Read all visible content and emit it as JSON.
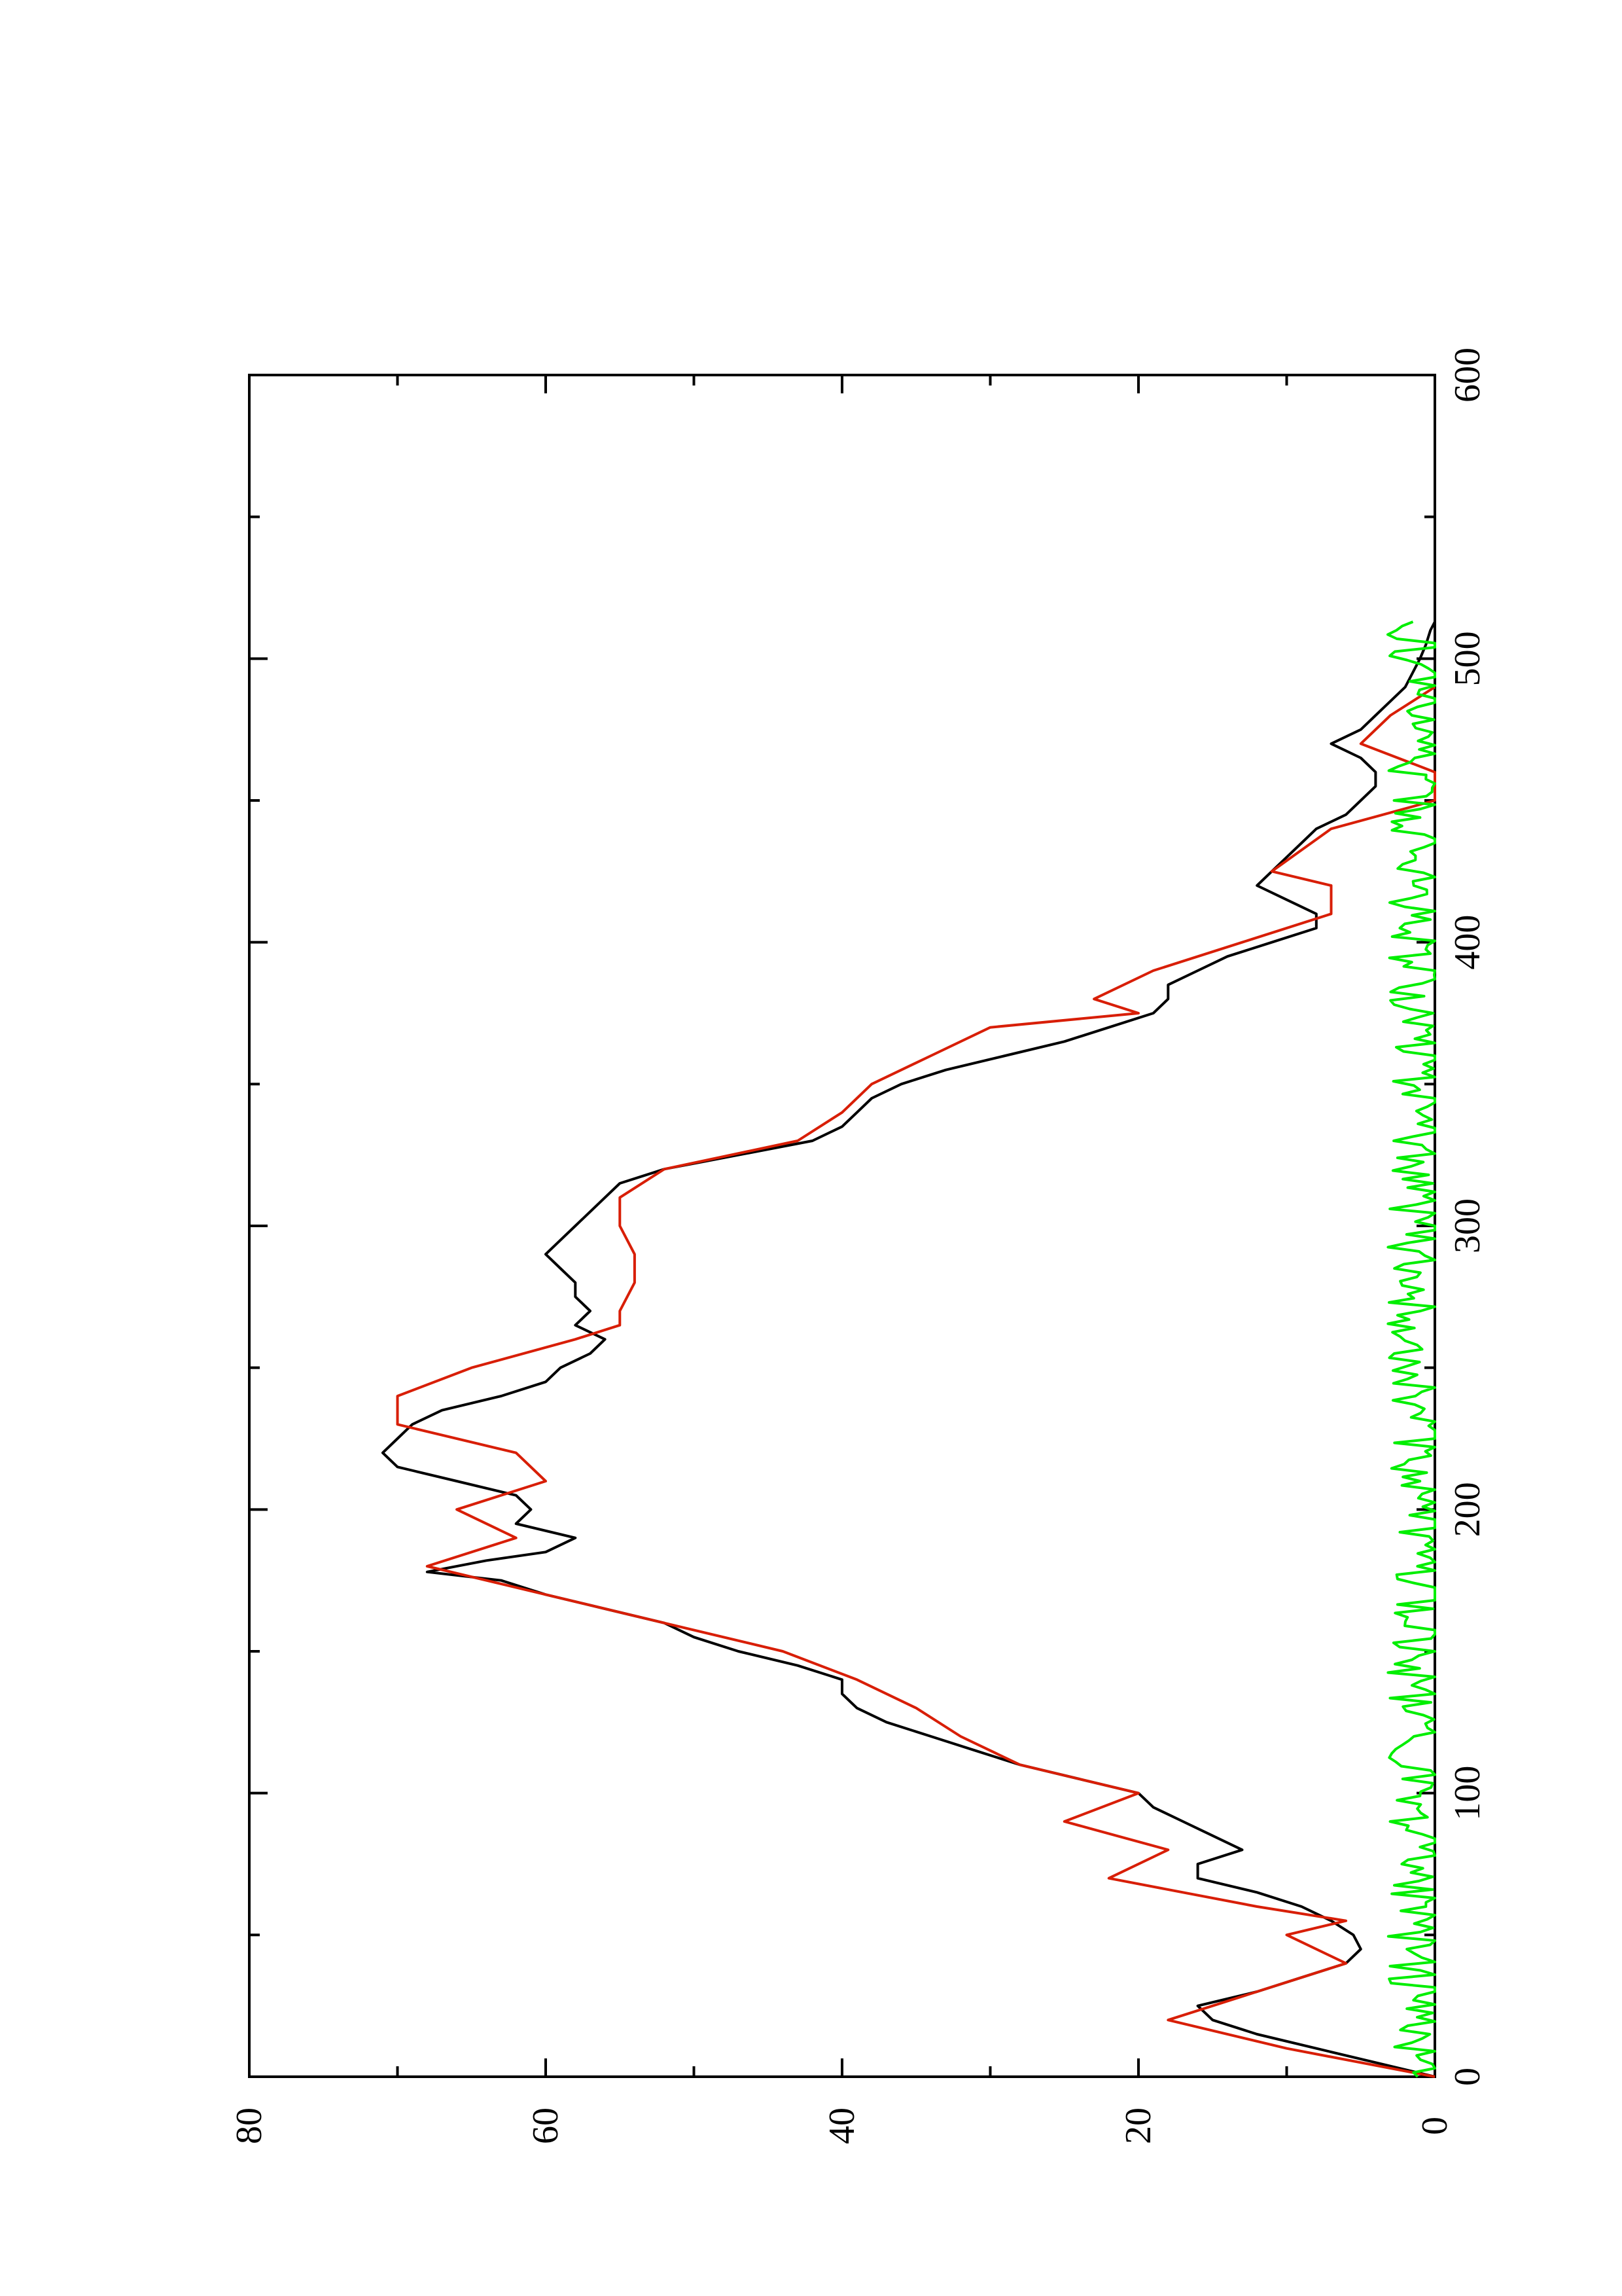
{
  "chart_data": {
    "type": "line",
    "orientation": "rotated-90-ccw",
    "xlim": [
      0,
      600
    ],
    "ylim": [
      0,
      80
    ],
    "x_ticks": [
      0,
      100,
      200,
      300,
      400,
      500,
      600
    ],
    "y_ticks": [
      0,
      20,
      40,
      60,
      80
    ],
    "x_tick_labels": [
      "0",
      "100",
      "200",
      "300",
      "400",
      "500",
      "600"
    ],
    "y_tick_labels": [
      "0",
      "20",
      "40",
      "60",
      "80"
    ],
    "x_minor_ticks": [
      50,
      150,
      250,
      350,
      450,
      550
    ],
    "y_minor_ticks": [
      10,
      30,
      50,
      70
    ],
    "grid": false,
    "series": [
      {
        "color": "#000000",
        "x": [
          0,
          5,
          10,
          15,
          20,
          25,
          30,
          35,
          40,
          45,
          50,
          55,
          60,
          65,
          70,
          75,
          80,
          85,
          90,
          95,
          100,
          105,
          110,
          115,
          120,
          125,
          130,
          135,
          140,
          145,
          150,
          155,
          160,
          165,
          170,
          175,
          178,
          182,
          185,
          190,
          195,
          200,
          205,
          210,
          215,
          220,
          225,
          230,
          235,
          240,
          245,
          250,
          255,
          260,
          265,
          270,
          275,
          280,
          285,
          290,
          295,
          300,
          305,
          310,
          315,
          320,
          325,
          330,
          335,
          340,
          345,
          350,
          355,
          360,
          365,
          370,
          375,
          380,
          385,
          390,
          395,
          400,
          405,
          410,
          415,
          420,
          425,
          430,
          435,
          440,
          445,
          450,
          455,
          460,
          465,
          470,
          475,
          480,
          485,
          490,
          495,
          500,
          505,
          510,
          513
        ],
        "y": [
          0,
          4,
          8,
          12,
          15,
          16,
          12,
          9,
          6,
          5,
          5.5,
          7,
          9,
          12,
          16,
          16,
          13,
          15,
          17,
          19,
          20,
          24,
          28,
          31,
          34,
          37,
          39,
          40,
          40,
          43,
          47,
          50,
          52,
          56,
          60,
          63,
          68,
          64,
          60,
          58,
          62,
          61,
          62,
          66,
          70,
          71,
          70,
          69,
          67,
          63,
          60,
          59,
          57,
          56,
          58,
          57,
          58,
          58,
          59,
          60,
          59,
          58,
          57,
          56,
          55,
          52,
          47,
          42,
          40,
          39,
          38,
          36,
          33,
          29,
          25,
          22,
          19,
          18,
          18,
          16,
          14,
          11,
          8,
          8,
          10,
          12,
          11,
          10,
          9,
          8,
          6,
          5,
          4,
          4,
          5,
          7,
          5,
          4,
          3,
          2,
          1.5,
          1,
          0.6,
          0.3,
          0
        ],
        "interpolation": "linear"
      },
      {
        "color": "#d81e05",
        "x": [
          0,
          10,
          20,
          30,
          40,
          50,
          55,
          60,
          70,
          80,
          90,
          100,
          110,
          120,
          130,
          140,
          150,
          160,
          170,
          180,
          190,
          200,
          210,
          220,
          230,
          240,
          250,
          260,
          265,
          270,
          280,
          290,
          300,
          310,
          320,
          330,
          340,
          350,
          360,
          370,
          375,
          380,
          390,
          400,
          410,
          420,
          425,
          440,
          450,
          460,
          470,
          480,
          490
        ],
        "y": [
          0,
          10,
          18,
          12,
          6,
          10,
          6,
          12,
          22,
          18,
          25,
          20,
          28,
          32,
          35,
          39,
          44,
          52,
          60,
          68,
          62,
          66,
          60,
          62,
          70,
          70,
          65,
          58,
          55,
          55,
          54,
          54,
          55,
          55,
          52,
          43,
          40,
          38,
          34,
          30,
          20,
          23,
          19,
          13,
          7,
          7,
          11,
          7,
          0,
          0,
          5,
          3,
          0
        ],
        "interpolation": "step-with-ramps"
      },
      {
        "color": "#00ee00",
        "x_range": [
          0,
          513
        ],
        "y_mean": 1.2,
        "y_max": 3.2,
        "y_min": 0,
        "interpolation": "noise"
      }
    ]
  }
}
